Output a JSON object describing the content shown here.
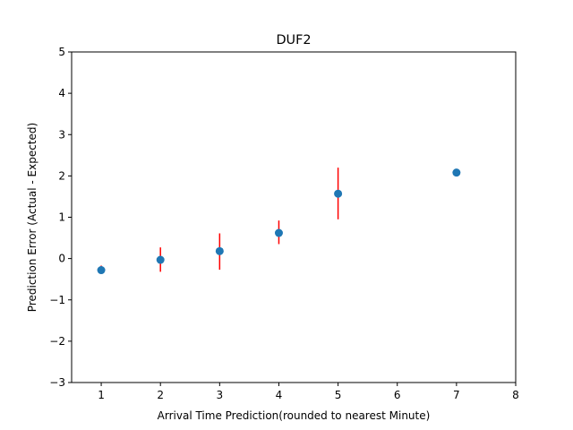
{
  "chart_data": {
    "type": "scatter",
    "title": "DUF2",
    "xlabel": "Arrival Time Prediction(rounded to nearest Minute)",
    "ylabel": "Prediction Error (Actual - Expected)",
    "xlim": [
      0.5,
      8
    ],
    "ylim": [
      -3,
      5
    ],
    "xticks": [
      1,
      2,
      3,
      4,
      5,
      6,
      7,
      8
    ],
    "yticks": [
      -3,
      -2,
      -1,
      0,
      1,
      2,
      3,
      4,
      5
    ],
    "ytick_labels": [
      "−3",
      "−2",
      "−1",
      "0",
      "1",
      "2",
      "3",
      "4",
      "5"
    ],
    "grid": false,
    "points": [
      {
        "x": 1,
        "y": -0.28,
        "err_low": -0.37,
        "err_high": -0.17
      },
      {
        "x": 2,
        "y": -0.03,
        "err_low": -0.32,
        "err_high": 0.27
      },
      {
        "x": 3,
        "y": 0.18,
        "err_low": -0.27,
        "err_high": 0.61
      },
      {
        "x": 4,
        "y": 0.62,
        "err_low": 0.35,
        "err_high": 0.92
      },
      {
        "x": 5,
        "y": 1.57,
        "err_low": 0.95,
        "err_high": 2.2
      },
      {
        "x": 7,
        "y": 2.08
      }
    ],
    "colors": {
      "marker": "#1f77b4",
      "errorbar": "#ff0000",
      "axis": "#000000"
    }
  }
}
